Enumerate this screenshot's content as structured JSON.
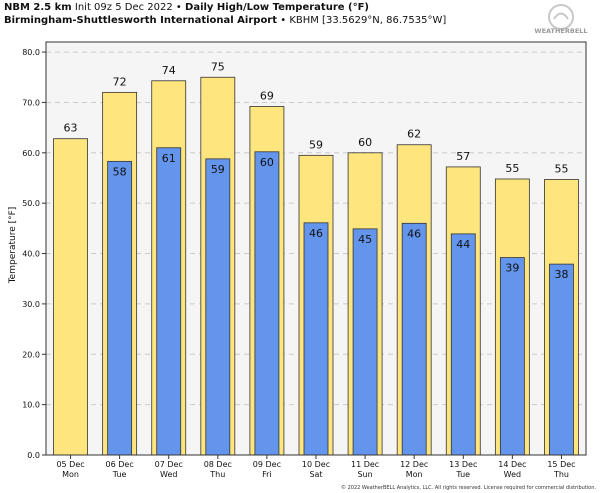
{
  "header": {
    "model": "NBM 2.5 km",
    "init": "Init 09z 5 Dec 2022",
    "bullet": "•",
    "title": "Daily High/Low Temperature (°F)",
    "location": "Birmingham-Shuttlesworth International Airport",
    "station": "KBHM [33.5629°N, 86.7535°W]"
  },
  "logo": {
    "text": "WEATHERBELL"
  },
  "footer": {
    "copyright": "© 2022 WeatherBELL Analytics, LLC. All rights reserved. License required for commercial distribution."
  },
  "colors": {
    "high": "#fee57e",
    "low": "#6495ed",
    "plot_bg": "#f5f5f5",
    "grid": "#cccccc"
  },
  "chart_data": {
    "type": "bar",
    "ylabel": "Temperature [°F]",
    "ylim": [
      0,
      82
    ],
    "yticks": [
      "0.0",
      "10.0",
      "20.0",
      "30.0",
      "40.0",
      "50.0",
      "60.0",
      "70.0",
      "80.0"
    ],
    "grid": true,
    "categories": [
      [
        "05 Dec",
        "Mon"
      ],
      [
        "06 Dec",
        "Tue"
      ],
      [
        "07 Dec",
        "Wed"
      ],
      [
        "08 Dec",
        "Thu"
      ],
      [
        "09 Dec",
        "Fri"
      ],
      [
        "10 Dec",
        "Sat"
      ],
      [
        "11 Dec",
        "Sun"
      ],
      [
        "12 Dec",
        "Mon"
      ],
      [
        "13 Dec",
        "Tue"
      ],
      [
        "14 Dec",
        "Wed"
      ],
      [
        "15 Dec",
        "Thu"
      ]
    ],
    "series": [
      {
        "values": [
          62.8,
          72.0,
          74.3,
          75.0,
          69.2,
          59.5,
          60.0,
          61.6,
          57.2,
          54.8,
          54.7
        ],
        "labels": [
          "63",
          "72",
          "74",
          "75",
          "69",
          "59",
          "60",
          "62",
          "57",
          "55",
          "55"
        ]
      },
      {
        "values": [
          null,
          58.3,
          61.0,
          58.8,
          60.2,
          46.1,
          44.9,
          46.0,
          43.9,
          39.2,
          37.9
        ],
        "labels": [
          null,
          "58",
          "61",
          "59",
          "60",
          "46",
          "45",
          "46",
          "44",
          "39",
          "38"
        ]
      }
    ]
  }
}
